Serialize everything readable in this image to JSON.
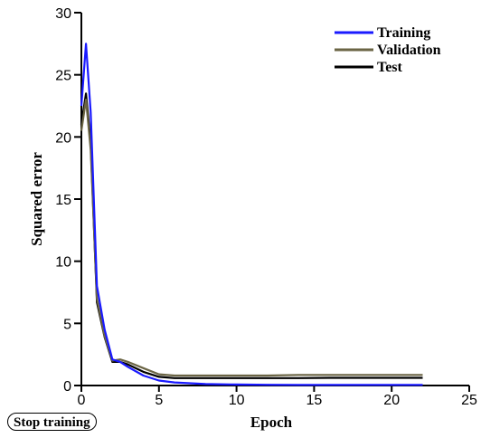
{
  "button": {
    "stop_label": "Stop training"
  },
  "chart_data": {
    "type": "line",
    "title": "",
    "xlabel": "Epoch",
    "ylabel": "Squared error",
    "xlim": [
      0,
      25
    ],
    "ylim": [
      0,
      30
    ],
    "xticks": [
      0,
      5,
      10,
      15,
      20,
      25
    ],
    "yticks": [
      0,
      5,
      10,
      15,
      20,
      25,
      30
    ],
    "grid": false,
    "legend_position": "top-right",
    "series": [
      {
        "name": "Training",
        "color": "#1a1aff",
        "x": [
          0,
          0.3,
          0.6,
          1,
          1.5,
          2,
          2.5,
          3,
          4,
          5,
          6,
          8,
          10,
          12,
          14,
          16,
          18,
          20,
          22
        ],
        "y": [
          22.5,
          27.5,
          22,
          8,
          4.5,
          2.1,
          1.9,
          1.5,
          0.8,
          0.4,
          0.25,
          0.12,
          0.08,
          0.06,
          0.05,
          0.05,
          0.05,
          0.05,
          0.05
        ]
      },
      {
        "name": "Validation",
        "color": "#6b6545",
        "x": [
          0,
          0.3,
          0.6,
          1,
          1.5,
          2,
          2.5,
          3,
          4,
          5,
          6,
          8,
          10,
          12,
          14,
          16,
          18,
          20,
          22
        ],
        "y": [
          20.5,
          23,
          19,
          7,
          4,
          2.0,
          2.1,
          1.9,
          1.4,
          0.9,
          0.8,
          0.8,
          0.8,
          0.8,
          0.85,
          0.85,
          0.85,
          0.85,
          0.85
        ]
      },
      {
        "name": "Test",
        "color": "#000000",
        "x": [
          0,
          0.3,
          0.6,
          1,
          1.5,
          2,
          2.5,
          3,
          4,
          5,
          6,
          8,
          10,
          12,
          14,
          16,
          18,
          20,
          22
        ],
        "y": [
          21,
          23.5,
          19.5,
          6.7,
          3.9,
          1.9,
          1.9,
          1.7,
          1.1,
          0.7,
          0.6,
          0.6,
          0.6,
          0.6,
          0.6,
          0.62,
          0.62,
          0.62,
          0.62
        ]
      }
    ]
  }
}
